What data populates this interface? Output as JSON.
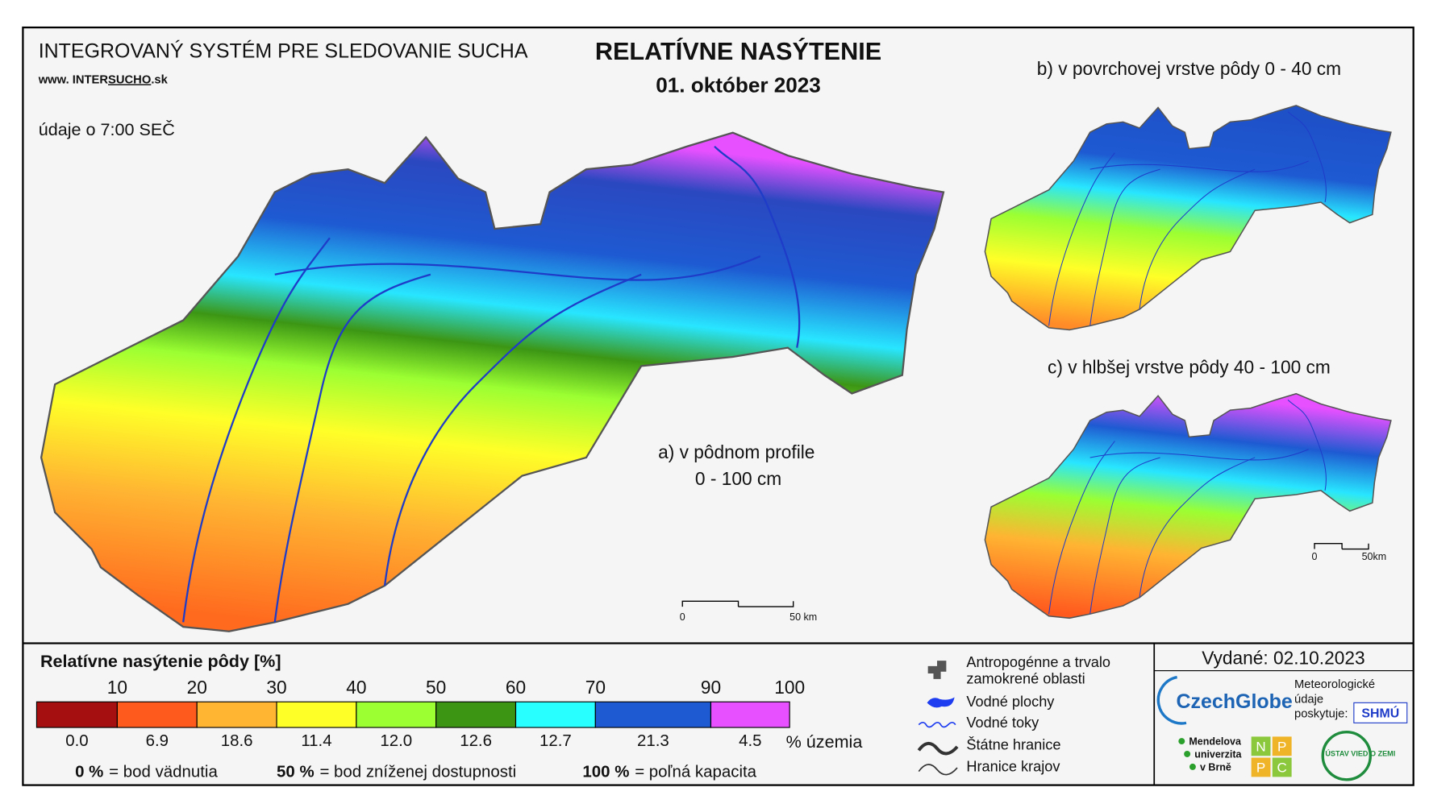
{
  "header": {
    "system_title": "INTEGROVANÝ SYSTÉM PRE SLEDOVANIE SUCHA",
    "website_prefix": "www. INTER",
    "website_highlight": "SUCHO",
    "website_suffix": ".sk",
    "data_time": "údaje o 7:00 SEČ"
  },
  "title": {
    "main": "RELATÍVNE NASÝTENIE",
    "date": "01. október 2023"
  },
  "maps": [
    {
      "label_line1": "a) v pôdnom profile",
      "label_line2": "0 - 100 cm",
      "scale_start": "0",
      "scale_end": "50 km"
    },
    {
      "label": "b) v povrchovej vrstve pôdy 0 - 40 cm"
    },
    {
      "label": "c) v hlbšej vrstve pôdy 40 - 100 cm",
      "scale_start": "0",
      "scale_end": "50km"
    }
  ],
  "legend": {
    "title": "Relatívne nasýtenie pôdy [%]",
    "bounds": [
      10,
      20,
      30,
      40,
      50,
      60,
      70,
      90,
      100
    ],
    "classes": [
      {
        "color": "#a50f0f",
        "share": "0.0"
      },
      {
        "color": "#ff5a1e",
        "share": "6.9"
      },
      {
        "color": "#ffb432",
        "share": "18.6"
      },
      {
        "color": "#ffff28",
        "share": "11.4"
      },
      {
        "color": "#9bff32",
        "share": "12.0"
      },
      {
        "color": "#3c9614",
        "share": "12.6"
      },
      {
        "color": "#28ffff",
        "share": "12.7"
      },
      {
        "color": "#1e5ad2",
        "share": "21.3"
      },
      {
        "color": "#e650ff",
        "share": "4.5"
      }
    ],
    "share_unit": "% územia",
    "notes": [
      {
        "value": "0 %",
        "text": "= bod vädnutia"
      },
      {
        "value": "50 %",
        "text": "= bod zníženej dostupnosti"
      },
      {
        "value": "100 %",
        "text": "= poľná kapacita"
      }
    ]
  },
  "symbols": [
    {
      "lines": [
        "Antropogénne a trvalo",
        "zamokrené oblasti"
      ]
    },
    {
      "lines": [
        "Vodné plochy"
      ]
    },
    {
      "lines": [
        "Vodné toky"
      ]
    },
    {
      "lines": [
        "Štátne hranice"
      ]
    },
    {
      "lines": [
        "Hranice krajov"
      ]
    }
  ],
  "footer": {
    "issued": "Vydané: 02.10.2023",
    "czechglobe": "CzechGlobe",
    "provider_lines": [
      "Meteorologické",
      "údaje",
      "poskytuje:"
    ],
    "shmu": "SHMÚ",
    "mendel_lines": [
      "Mendelova",
      "univerzita",
      "v Brně"
    ],
    "nppc_letters": [
      "N",
      "P",
      "P",
      "C"
    ],
    "uvz": "ÚSTAV VIED O ZEMI"
  }
}
